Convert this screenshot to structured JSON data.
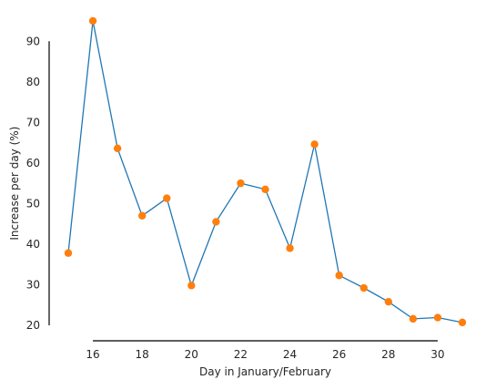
{
  "chart_data": {
    "type": "line",
    "title": "",
    "xlabel": "Day in January/February",
    "ylabel": "Increase per day (%)",
    "xlim": [
      15,
      31
    ],
    "ylim": [
      20,
      95
    ],
    "xticks": [
      16,
      18,
      20,
      22,
      24,
      26,
      28,
      30
    ],
    "yticks": [
      20,
      30,
      40,
      50,
      60,
      70,
      80,
      90
    ],
    "grid": false,
    "line_color": "#1f77b4",
    "marker_color": "#ff7f0e",
    "series": [
      {
        "x": [
          15,
          16,
          17,
          18,
          19,
          20,
          21,
          22,
          23,
          24,
          25,
          26,
          27,
          28,
          29,
          30,
          31
        ],
        "y": [
          37.8,
          95.0,
          63.6,
          47.0,
          51.3,
          29.8,
          45.5,
          55.0,
          53.5,
          39.0,
          64.6,
          32.3,
          29.2,
          25.8,
          21.6,
          21.9,
          20.7
        ]
      }
    ]
  }
}
